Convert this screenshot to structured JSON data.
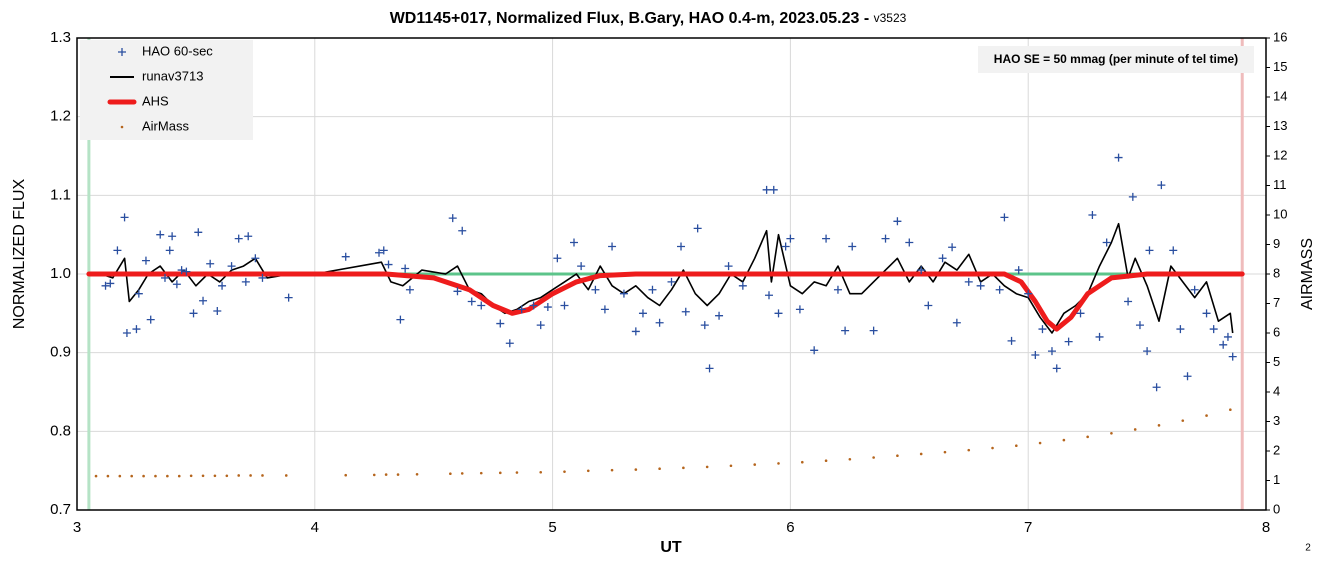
{
  "chart_data": {
    "type": "combo",
    "title": "WD1145+017, Normalized Flux, B.Gary, HAO 0.4-m, 2023.05.23 - ",
    "title_version": "v3523",
    "x_label": "UT",
    "y_label": "NORMALIZED FLUX",
    "y2_label": "AIRMASS",
    "annotation": "HAO SE =  50 mmag (per minute of tel time)",
    "page_number": "2",
    "xlim": [
      3,
      8
    ],
    "xticks": [
      3,
      4,
      5,
      6,
      7,
      8
    ],
    "ylim": [
      0.7,
      1.3
    ],
    "yticks": [
      0.7,
      0.8,
      0.9,
      {
        "value": 1,
        "label": "1.0"
      },
      1.1,
      1.2,
      1.3
    ],
    "y2lim": [
      0,
      16
    ],
    "y2ticks": [
      0,
      1,
      2,
      3,
      4,
      5,
      6,
      7,
      8,
      9,
      10,
      11,
      12,
      13,
      14,
      15,
      16
    ],
    "grid": true,
    "legend": "upper left",
    "hline": {
      "value": 1,
      "xrange": [
        3.05,
        7.9
      ],
      "color": "#5cc48a"
    },
    "vlines": [
      {
        "value": 3.05,
        "color": "#b5e3c6"
      },
      {
        "value": 7.9,
        "color": "#efbcbc"
      }
    ],
    "series": [
      {
        "name": "HAO 60-sec",
        "style": "plus",
        "color": "#2a4fa0",
        "x": [
          3.12,
          3.14,
          3.17,
          3.2,
          3.21,
          3.25,
          3.26,
          3.29,
          3.31,
          3.35,
          3.37,
          3.39,
          3.4,
          3.42,
          3.44,
          3.46,
          3.49,
          3.51,
          3.53,
          3.56,
          3.59,
          3.61,
          3.65,
          3.68,
          3.71,
          3.72,
          3.75,
          3.78,
          3.89,
          4.13,
          4.27,
          4.29,
          4.31,
          4.36,
          4.38,
          4.4,
          4.58,
          4.6,
          4.62,
          4.66,
          4.7,
          4.78,
          4.82,
          4.87,
          4.92,
          4.95,
          4.98,
          5.02,
          5.05,
          5.09,
          5.12,
          5.18,
          5.22,
          5.25,
          5.3,
          5.35,
          5.38,
          5.42,
          5.45,
          5.5,
          5.54,
          5.56,
          5.61,
          5.64,
          5.66,
          5.7,
          5.74,
          5.8,
          5.9,
          5.91,
          5.93,
          5.95,
          5.98,
          6,
          6.04,
          6.1,
          6.15,
          6.2,
          6.23,
          6.26,
          6.35,
          6.4,
          6.45,
          6.5,
          6.55,
          6.58,
          6.64,
          6.68,
          6.7,
          6.75,
          6.8,
          6.88,
          6.9,
          6.93,
          6.96,
          7,
          7.03,
          7.06,
          7.1,
          7.12,
          7.17,
          7.22,
          7.27,
          7.3,
          7.33,
          7.38,
          7.42,
          7.44,
          7.47,
          7.5,
          7.51,
          7.54,
          7.56,
          7.61,
          7.64,
          7.67,
          7.7,
          7.75,
          7.78,
          7.82,
          7.84,
          7.86
        ],
        "values": [
          0.985,
          0.988,
          1.03,
          1.072,
          0.925,
          0.93,
          0.975,
          1.017,
          0.942,
          1.05,
          0.995,
          1.03,
          1.048,
          0.987,
          1.005,
          1.003,
          0.95,
          1.053,
          0.966,
          1.013,
          0.953,
          0.985,
          1.01,
          1.045,
          0.99,
          1.048,
          1.02,
          0.995,
          0.97,
          1.022,
          1.027,
          1.03,
          1.012,
          0.942,
          1.007,
          0.98,
          1.071,
          0.978,
          1.055,
          0.965,
          0.96,
          0.937,
          0.912,
          0.955,
          0.96,
          0.935,
          0.958,
          1.02,
          0.96,
          1.04,
          1.01,
          0.98,
          0.955,
          1.035,
          0.975,
          0.927,
          0.95,
          0.98,
          0.938,
          0.99,
          1.035,
          0.952,
          1.058,
          0.935,
          0.88,
          0.947,
          1.01,
          0.985,
          1.107,
          0.973,
          1.107,
          0.95,
          1.035,
          1.045,
          0.955,
          0.903,
          1.045,
          0.98,
          0.928,
          1.035,
          0.928,
          1.045,
          1.067,
          1.04,
          1.005,
          0.96,
          1.02,
          1.034,
          0.938,
          0.99,
          0.985,
          0.98,
          1.072,
          0.915,
          1.005,
          0.975,
          0.897,
          0.93,
          0.902,
          0.88,
          0.914,
          0.95,
          1.075,
          0.92,
          1.04,
          1.148,
          0.965,
          1.098,
          0.935,
          0.902,
          1.03,
          0.856,
          1.113,
          1.03,
          0.93,
          0.87,
          0.98,
          0.95,
          0.93,
          0.91,
          0.92,
          0.895
        ]
      },
      {
        "name": "runav3713",
        "style": "line",
        "color": "#000000",
        "x": [
          3.1,
          3.15,
          3.2,
          3.22,
          3.26,
          3.3,
          3.35,
          3.4,
          3.45,
          3.5,
          3.55,
          3.6,
          3.65,
          3.7,
          3.75,
          3.8,
          3.9,
          4,
          4.28,
          4.32,
          4.37,
          4.45,
          4.55,
          4.6,
          4.65,
          4.7,
          4.75,
          4.8,
          4.85,
          4.9,
          4.95,
          5,
          5.05,
          5.1,
          5.15,
          5.2,
          5.25,
          5.3,
          5.35,
          5.4,
          5.45,
          5.5,
          5.55,
          5.6,
          5.65,
          5.7,
          5.75,
          5.8,
          5.85,
          5.9,
          5.92,
          5.95,
          6,
          6.05,
          6.1,
          6.15,
          6.2,
          6.25,
          6.3,
          6.4,
          6.45,
          6.5,
          6.55,
          6.6,
          6.65,
          6.7,
          6.75,
          6.8,
          6.85,
          6.9,
          6.95,
          7,
          7.05,
          7.1,
          7.15,
          7.2,
          7.25,
          7.3,
          7.35,
          7.38,
          7.42,
          7.45,
          7.5,
          7.55,
          7.6,
          7.65,
          7.7,
          7.75,
          7.8,
          7.85,
          7.86
        ],
        "values": [
          1,
          0.995,
          1.02,
          0.965,
          0.98,
          1,
          1.01,
          0.99,
          1.005,
          0.985,
          1,
          0.99,
          1.005,
          1.01,
          1.02,
          0.995,
          1,
          1,
          1.015,
          0.99,
          0.985,
          1.005,
          1,
          1.01,
          0.98,
          0.975,
          0.96,
          0.95,
          0.955,
          0.965,
          0.97,
          0.98,
          0.99,
          1,
          0.98,
          1.01,
          0.985,
          0.975,
          0.985,
          0.97,
          0.96,
          0.98,
          1.005,
          0.975,
          0.96,
          0.975,
          1,
          0.99,
          1.02,
          1.055,
          0.99,
          1.05,
          0.985,
          0.975,
          0.99,
          0.985,
          1.01,
          0.975,
          0.975,
          1.005,
          1.02,
          0.99,
          1.01,
          0.99,
          1.015,
          1.005,
          1.025,
          0.99,
          1,
          0.985,
          0.975,
          0.97,
          0.945,
          0.925,
          0.95,
          0.96,
          0.975,
          1.01,
          1.04,
          1.064,
          0.995,
          1.02,
          0.985,
          0.94,
          1.01,
          0.99,
          0.97,
          0.99,
          0.94,
          0.95,
          0.925
        ]
      },
      {
        "name": "AHS",
        "style": "thick",
        "color": "#ee1c1c",
        "x": [
          3.05,
          4.3,
          4.5,
          4.65,
          4.75,
          4.83,
          4.9,
          5,
          5.1,
          5.2,
          5.35,
          6.9,
          6.97,
          7.03,
          7.08,
          7.12,
          7.18,
          7.25,
          7.35,
          7.5,
          7.9
        ],
        "values": [
          1,
          1,
          0.995,
          0.98,
          0.96,
          0.95,
          0.955,
          0.975,
          0.99,
          0.998,
          1,
          1,
          0.99,
          0.965,
          0.94,
          0.93,
          0.945,
          0.975,
          0.995,
          1,
          1
        ]
      },
      {
        "name": "AirMass",
        "style": "dot",
        "color": "#b5651d",
        "axis": "y2",
        "x": [
          3.08,
          3.13,
          3.18,
          3.23,
          3.28,
          3.33,
          3.38,
          3.43,
          3.48,
          3.53,
          3.58,
          3.63,
          3.68,
          3.73,
          3.78,
          3.88,
          4.13,
          4.25,
          4.3,
          4.35,
          4.43,
          4.57,
          4.62,
          4.7,
          4.78,
          4.85,
          4.95,
          5.05,
          5.15,
          5.25,
          5.35,
          5.45,
          5.55,
          5.65,
          5.75,
          5.85,
          5.95,
          6.05,
          6.15,
          6.25,
          6.35,
          6.45,
          6.55,
          6.65,
          6.75,
          6.85,
          6.95,
          7.05,
          7.15,
          7.25,
          7.35,
          7.45,
          7.55,
          7.65,
          7.75,
          7.85
        ],
        "values": [
          1.15,
          1.15,
          1.15,
          1.15,
          1.15,
          1.15,
          1.15,
          1.15,
          1.16,
          1.16,
          1.16,
          1.16,
          1.17,
          1.17,
          1.17,
          1.17,
          1.18,
          1.19,
          1.2,
          1.2,
          1.21,
          1.23,
          1.24,
          1.25,
          1.26,
          1.27,
          1.28,
          1.3,
          1.33,
          1.35,
          1.37,
          1.4,
          1.43,
          1.46,
          1.5,
          1.54,
          1.58,
          1.62,
          1.67,
          1.72,
          1.78,
          1.84,
          1.9,
          1.96,
          2.03,
          2.1,
          2.18,
          2.27,
          2.37,
          2.48,
          2.6,
          2.73,
          2.87,
          3.03,
          3.2,
          3.4
        ]
      }
    ]
  }
}
